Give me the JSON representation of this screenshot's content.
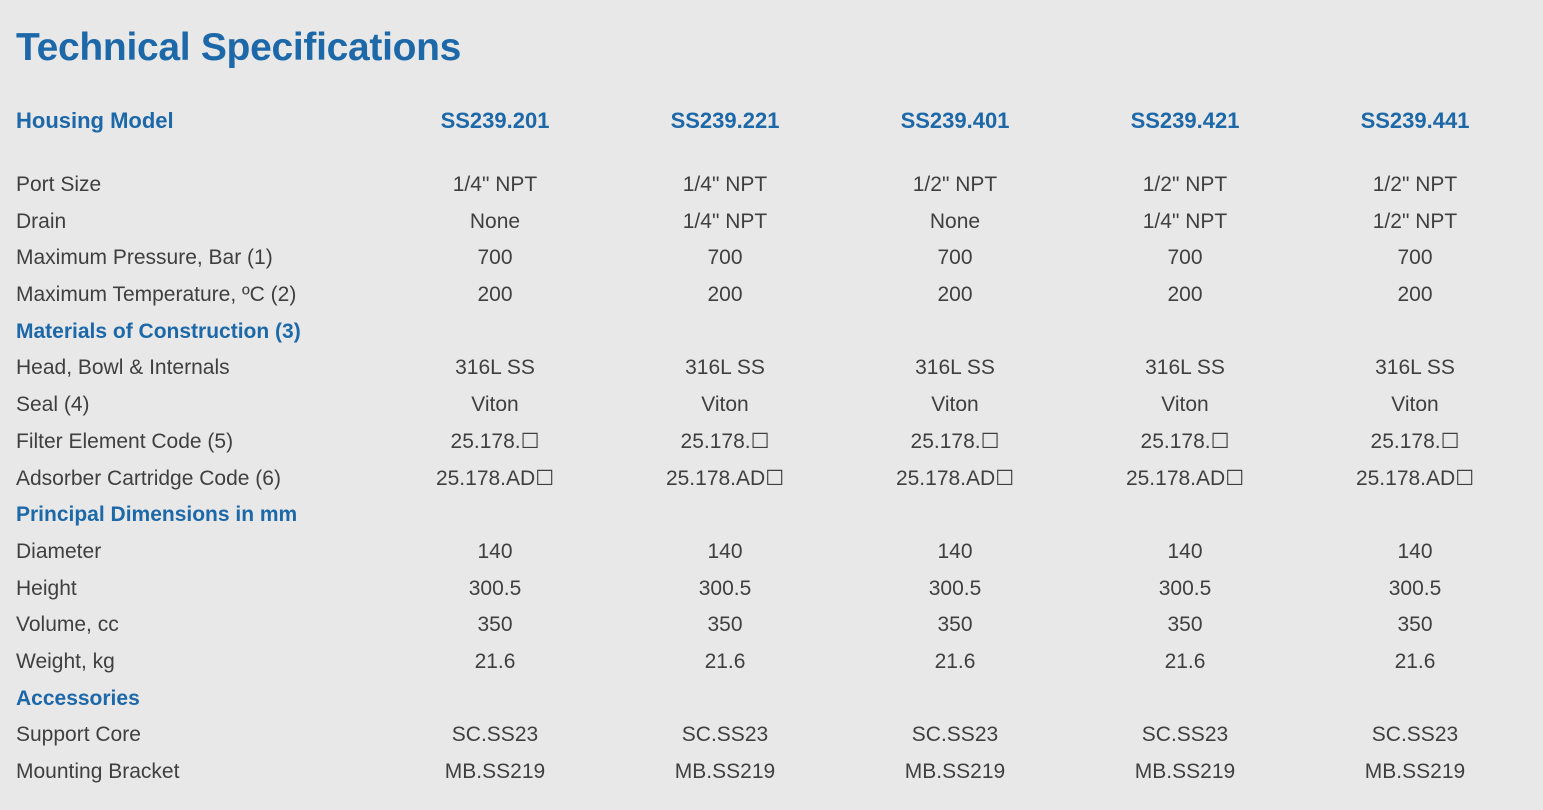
{
  "title": "Technical Specifications",
  "header": {
    "label": "Housing Model",
    "models": [
      "SS239.201",
      "SS239.221",
      "SS239.401",
      "SS239.421",
      "SS239.441"
    ]
  },
  "rows": [
    {
      "type": "data",
      "label": "Port Size",
      "values": [
        "1/4\" NPT",
        "1/4\" NPT",
        "1/2\" NPT",
        "1/2\" NPT",
        "1/2\" NPT"
      ]
    },
    {
      "type": "data",
      "label": "Drain",
      "values": [
        "None",
        "1/4\" NPT",
        "None",
        "1/4\" NPT",
        "1/2\" NPT"
      ]
    },
    {
      "type": "data",
      "label": "Maximum Pressure, Bar (1)",
      "values": [
        "700",
        "700",
        "700",
        "700",
        "700"
      ]
    },
    {
      "type": "data",
      "label": "Maximum Temperature, ºC (2)",
      "values": [
        "200",
        "200",
        "200",
        "200",
        "200"
      ]
    },
    {
      "type": "section",
      "label": "Materials of Construction (3)"
    },
    {
      "type": "data",
      "label": "Head, Bowl & Internals",
      "values": [
        "316L SS",
        "316L SS",
        "316L SS",
        "316L SS",
        "316L SS"
      ]
    },
    {
      "type": "data",
      "label": "Seal (4)",
      "values": [
        "Viton",
        "Viton",
        "Viton",
        "Viton",
        "Viton"
      ]
    },
    {
      "type": "data",
      "label": "Filter Element Code (5)",
      "values": [
        "25.178.☐",
        "25.178.☐",
        "25.178.☐",
        "25.178.☐",
        "25.178.☐"
      ]
    },
    {
      "type": "data",
      "label": "Adsorber Cartridge Code (6)",
      "values": [
        "25.178.AD☐",
        "25.178.AD☐",
        "25.178.AD☐",
        "25.178.AD☐",
        "25.178.AD☐"
      ]
    },
    {
      "type": "section",
      "label": "Principal Dimensions in mm"
    },
    {
      "type": "data",
      "label": "Diameter",
      "values": [
        "140",
        "140",
        "140",
        "140",
        "140"
      ]
    },
    {
      "type": "data",
      "label": "Height",
      "values": [
        "300.5",
        "300.5",
        "300.5",
        "300.5",
        "300.5"
      ]
    },
    {
      "type": "data",
      "label": "Volume, cc",
      "values": [
        "350",
        "350",
        "350",
        "350",
        "350"
      ]
    },
    {
      "type": "data",
      "label": "Weight, kg",
      "values": [
        "21.6",
        "21.6",
        "21.6",
        "21.6",
        "21.6"
      ]
    },
    {
      "type": "section",
      "label": "Accessories"
    },
    {
      "type": "data",
      "label": "Support Core",
      "values": [
        "SC.SS23",
        "SC.SS23",
        "SC.SS23",
        "SC.SS23",
        "SC.SS23"
      ]
    },
    {
      "type": "data",
      "label": "Mounting Bracket",
      "values": [
        "MB.SS219",
        "MB.SS219",
        "MB.SS219",
        "MB.SS219",
        "MB.SS219"
      ]
    }
  ]
}
